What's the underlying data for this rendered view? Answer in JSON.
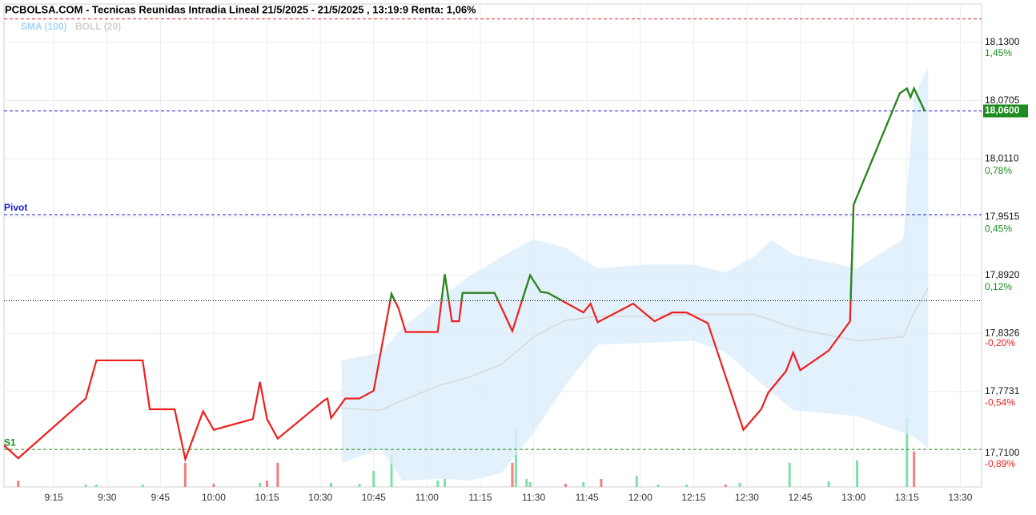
{
  "chart_data": {
    "type": "line",
    "title": "PCBOLSA.COM - Tecnicas Reunidas Intradia Lineal 21/5/2025 - 21/5/2025 , 13:19:9 Renta: 1,06%",
    "legend": [
      "SMA (100)",
      "BOLL (20)"
    ],
    "xlim": [
      "9:01",
      "13:36"
    ],
    "xticks": [
      "9:15",
      "9:30",
      "9:45",
      "10:00",
      "10:15",
      "10:30",
      "10:45",
      "11:00",
      "11:15",
      "11:30",
      "11:45",
      "12:00",
      "12:15",
      "12:30",
      "12:45",
      "13:00",
      "13:15",
      "13:30"
    ],
    "ylim": [
      17.6756,
      18.1693
    ],
    "yticks": [
      {
        "value": 18.13,
        "label": "18,1300"
      },
      {
        "value": 18.0705,
        "label": "18,0705"
      },
      {
        "value": 18.011,
        "label": "18,0110"
      },
      {
        "value": 17.9515,
        "label": "17,9515"
      },
      {
        "value": 17.892,
        "label": "17,8920"
      },
      {
        "value": 17.8326,
        "label": "17,8326"
      },
      {
        "value": 17.7731,
        "label": "17,7731"
      },
      {
        "value": 17.71,
        "label": "17,7100"
      }
    ],
    "y2lim": [
      -1.0816,
      1.669
    ],
    "y2ticks": [
      {
        "value": 1.45,
        "label": "1,45%"
      },
      {
        "value": 0.78,
        "label": "0,78%"
      },
      {
        "value": 0.45,
        "label": "0,45%"
      },
      {
        "value": 0.12,
        "label": "0,12%"
      },
      {
        "value": -0.2,
        "label": "-0,20%"
      },
      {
        "value": -0.54,
        "label": "-0,54%"
      },
      {
        "value": -0.89,
        "label": "-0,89%"
      }
    ],
    "grid": true,
    "reference": 17.866,
    "up_color": "#1e8c1e",
    "down_color": "#f01e1e",
    "x": [
      "9:01",
      "9:05",
      "9:24",
      "9:27",
      "9:40",
      "9:42",
      "9:49",
      "9:52",
      "9:57",
      "10:00",
      "10:11",
      "10:13",
      "10:15",
      "10:18",
      "10:31",
      "10:32",
      "10:33",
      "10:37",
      "10:41",
      "10:45",
      "10:50",
      "10:52",
      "10:54",
      "11:03",
      "11:05",
      "11:07",
      "11:09",
      "11:10",
      "11:19",
      "11:24",
      "11:29",
      "11:32",
      "11:34",
      "11:44",
      "11:46",
      "11:48",
      "11:58",
      "12:04",
      "12:09",
      "12:13",
      "12:19",
      "12:29",
      "12:34",
      "12:36",
      "12:41",
      "12:43",
      "12:45",
      "12:53",
      "12:59",
      "13:00",
      "13:13",
      "13:15",
      "13:16",
      "13:17",
      "13:20"
    ],
    "values": [
      17.718,
      17.705,
      17.766,
      17.805,
      17.805,
      17.755,
      17.755,
      17.704,
      17.753,
      17.734,
      17.745,
      17.783,
      17.745,
      17.725,
      17.764,
      17.766,
      17.746,
      17.766,
      17.766,
      17.774,
      17.873,
      17.858,
      17.834,
      17.834,
      17.893,
      17.845,
      17.845,
      17.874,
      17.874,
      17.835,
      17.892,
      17.875,
      17.874,
      17.854,
      17.863,
      17.844,
      17.863,
      17.845,
      17.854,
      17.854,
      17.843,
      17.734,
      17.755,
      17.772,
      17.794,
      17.813,
      17.795,
      17.815,
      17.845,
      17.964,
      18.078,
      18.083,
      18.074,
      18.083,
      18.06
    ],
    "bollinger": {
      "x": [
        "10:36",
        "10:47",
        "10:53",
        "11:04",
        "11:12",
        "11:21",
        "11:30",
        "11:39",
        "11:48",
        "12:02",
        "12:15",
        "12:24",
        "12:32",
        "12:37",
        "12:43",
        "13:01",
        "13:14",
        "13:17",
        "13:21"
      ],
      "upper": [
        17.805,
        17.813,
        17.838,
        17.87,
        17.891,
        17.911,
        17.929,
        17.92,
        17.899,
        17.903,
        17.903,
        17.895,
        17.911,
        17.928,
        17.913,
        17.899,
        17.929,
        18.075,
        18.105
      ],
      "lower": [
        17.7,
        17.715,
        17.682,
        17.684,
        17.682,
        17.69,
        17.731,
        17.78,
        17.821,
        17.823,
        17.825,
        17.813,
        17.788,
        17.772,
        17.754,
        17.748,
        17.731,
        17.727,
        17.715
      ],
      "sma": [
        17.756,
        17.754,
        17.764,
        17.78,
        17.788,
        17.801,
        17.829,
        17.846,
        17.85,
        17.85,
        17.852,
        17.852,
        17.852,
        17.846,
        17.838,
        17.825,
        17.829,
        17.854,
        17.879
      ],
      "band_color": "#dbeefb",
      "sma_color": "#d8d8d8"
    },
    "levels": [
      {
        "value": 18.154,
        "color": "#e0202a"
      },
      {
        "name": "Pivot",
        "value": 17.954,
        "color": "#1a1ad0"
      },
      {
        "name": "S1",
        "value": 17.714,
        "color": "#1a8a1a"
      }
    ],
    "current": {
      "value": 18.06,
      "label": "18,0600",
      "color": "#1a1ad0"
    },
    "volume": {
      "ylim": [
        0,
        600
      ],
      "up": {
        "color": "#7ee0a8",
        "x": [
          "9:24",
          "9:27",
          "9:40",
          "10:13",
          "10:33",
          "10:41",
          "10:45",
          "10:50",
          "11:03",
          "11:05",
          "11:25",
          "11:28",
          "11:29",
          "11:44",
          "11:59",
          "12:05",
          "12:13",
          "12:28",
          "12:42",
          "12:53",
          "13:01",
          "13:15"
        ],
        "values": [
          3,
          3,
          3,
          5,
          5,
          4,
          20,
          40,
          8,
          10,
          72,
          10,
          6,
          6,
          14,
          3,
          3,
          5,
          30,
          7,
          33,
          86
        ]
      },
      "down": {
        "color": "#f08080",
        "x": [
          "9:05",
          "9:52",
          "10:00",
          "10:15",
          "10:18",
          "11:24",
          "11:39",
          "11:49",
          "12:24",
          "13:17"
        ],
        "values": [
          8,
          30,
          4,
          8,
          30,
          30,
          4,
          10,
          3,
          44
        ]
      }
    }
  }
}
